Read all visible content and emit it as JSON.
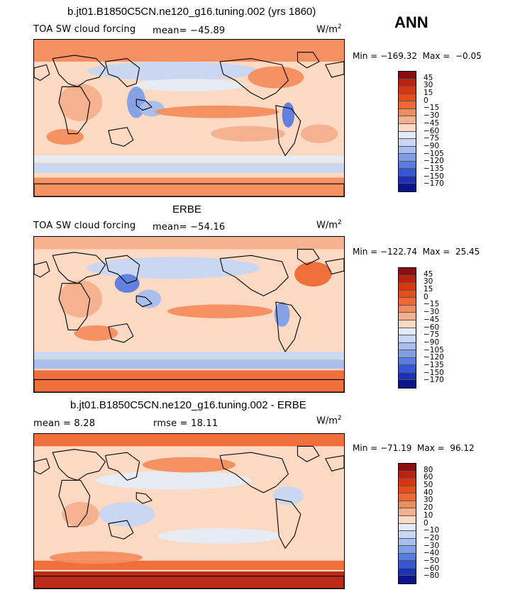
{
  "season": "ANN",
  "panels": [
    {
      "title": "b.jt01.B1850C5CN.ne120_g16.tuning.002 (yrs 1860)",
      "label": "TOA SW cloud forcing",
      "mean": "mean=  −45.89",
      "units": "W/m",
      "units_exp": "2",
      "minmax": "Min = −169.32  Max =  −0.05",
      "colorbar_labels": [
        "45",
        "30",
        "15",
        "0",
        "−15",
        "−30",
        "−45",
        "−60",
        "−75",
        "−90",
        "−105",
        "−120",
        "−135",
        "−150",
        "−170"
      ],
      "colorbar_colors": [
        "#8b0d0d",
        "#b8220e",
        "#d8360e",
        "#e54e16",
        "#ee6a35",
        "#f48d5e",
        "#f6b08d",
        "#fbd9c3",
        "#e5ecf7",
        "#c8d7f3",
        "#a7bef0",
        "#7f9ee8",
        "#5a7be0",
        "#3456d2",
        "#1b31b8",
        "#0a1687"
      ],
      "field": "ctrl"
    },
    {
      "title": "ERBE",
      "label": "TOA SW cloud forcing",
      "mean": "mean=  −54.16",
      "units": "W/m",
      "units_exp": "2",
      "minmax": "Min = −122.74  Max =  25.45",
      "colorbar_labels": [
        "45",
        "30",
        "15",
        "0",
        "−15",
        "−30",
        "−45",
        "−60",
        "−75",
        "−90",
        "−105",
        "−120",
        "−135",
        "−150",
        "−170"
      ],
      "colorbar_colors": [
        "#8b0d0d",
        "#b8220e",
        "#d8360e",
        "#e54e16",
        "#ee6a35",
        "#f48d5e",
        "#f6b08d",
        "#fbd9c3",
        "#e5ecf7",
        "#c8d7f3",
        "#a7bef0",
        "#7f9ee8",
        "#5a7be0",
        "#3456d2",
        "#1b31b8",
        "#0a1687"
      ],
      "field": "obs"
    },
    {
      "title": "b.jt01.B1850C5CN.ne120_g16.tuning.002 - ERBE",
      "mean": "mean =    8.28",
      "rmse": "rmse =   18.11",
      "units": "W/m",
      "units_exp": "2",
      "minmax": "Min = −71.19  Max =  96.12",
      "colorbar_labels": [
        "80",
        "60",
        "50",
        "40",
        "30",
        "20",
        "10",
        "0",
        "−10",
        "−20",
        "−30",
        "−40",
        "−50",
        "−60",
        "−80"
      ],
      "colorbar_colors": [
        "#8b0d0d",
        "#b8220e",
        "#d8360e",
        "#e54e16",
        "#ee6a35",
        "#f48d5e",
        "#f6b08d",
        "#fbd9c3",
        "#e5ecf7",
        "#c8d7f3",
        "#a7bef0",
        "#7f9ee8",
        "#5a7be0",
        "#3456d2",
        "#1b31b8",
        "#0a1687"
      ],
      "field": "diff"
    }
  ]
}
